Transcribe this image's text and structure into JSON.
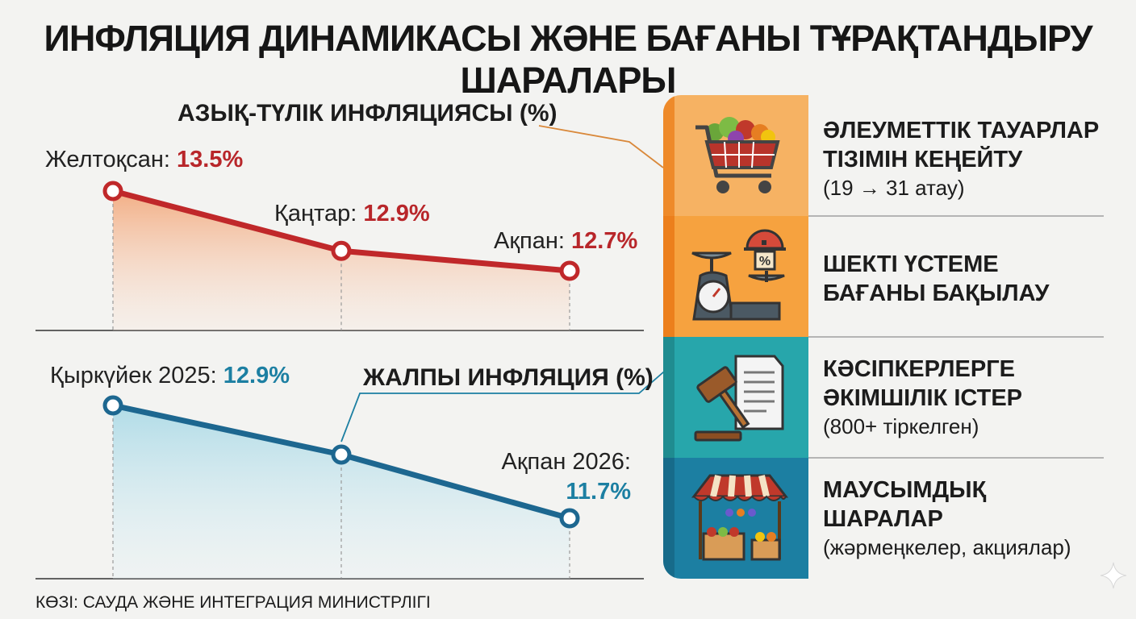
{
  "title": "ИНФЛЯЦИЯ ДИНАМИКАСЫ ЖӘНЕ БАҒАНЫ ТҰРАҚТАНДЫРУ ШАРАЛАРЫ",
  "source": "КӨЗІ: САУДА ЖӘНЕ ИНТЕГРАЦИЯ МИНИСТРЛІГІ",
  "colors": {
    "food_line": "#c0282a",
    "general_line": "#1d6790",
    "food_value": "#b8262a",
    "general_value": "#1c7fa2",
    "band_1": "#f6b263",
    "band_2": "#f6a23f",
    "band_3": "#27a6ab",
    "band_4": "#1c7fa2"
  },
  "chart_data": [
    {
      "type": "line",
      "title": "АЗЫҚ-ТҮЛІК ИНФЛЯЦИЯСЫ (%)",
      "series": [
        {
          "x": [
            "Желтоқсан",
            "Қаңтар",
            "Ақпан"
          ],
          "values": [
            13.5,
            12.9,
            12.7
          ]
        }
      ],
      "labels": [
        "Желтоқсан:",
        "Қаңтар:",
        "Ақпан:"
      ],
      "value_labels": [
        "13.5%",
        "12.9%",
        "12.7%"
      ]
    },
    {
      "type": "line",
      "title": "ЖАЛПЫ ИНФЛЯЦИЯ (%)",
      "series": [
        {
          "x": [
            "Қыркүйек 2025",
            "",
            "Ақпан 2026"
          ],
          "values": [
            12.9,
            null,
            11.7
          ]
        }
      ],
      "labels": [
        "Қыркүйек 2025:",
        "",
        "Ақпан 2026:"
      ],
      "value_labels": [
        "12.9%",
        "",
        "11.7%"
      ]
    }
  ],
  "measures": [
    {
      "icon": "shopping-cart-icon",
      "title_lines": [
        "ӘЛЕУМЕТТІК ТАУАРЛАР",
        "ТІЗІМІН КЕҢЕЙТУ"
      ],
      "subtitle": "(19 → 31 атау)"
    },
    {
      "icon": "scale-icon",
      "title_lines": [
        "ШЕКТІ ҮСТЕМЕ",
        "БАҒАНЫ БАҚЫЛАУ"
      ],
      "subtitle": ""
    },
    {
      "icon": "gavel-document-icon",
      "title_lines": [
        "КӘСІПКЕРЛЕРГЕ",
        "ӘКІМШІЛІК ІСТЕР"
      ],
      "subtitle": "(800+ тіркелген)"
    },
    {
      "icon": "market-stall-icon",
      "title_lines": [
        "МАУСЫМДЫҚ",
        "ШАРАЛАР"
      ],
      "subtitle": "(жәрмеңкелер, акциялар)"
    }
  ]
}
